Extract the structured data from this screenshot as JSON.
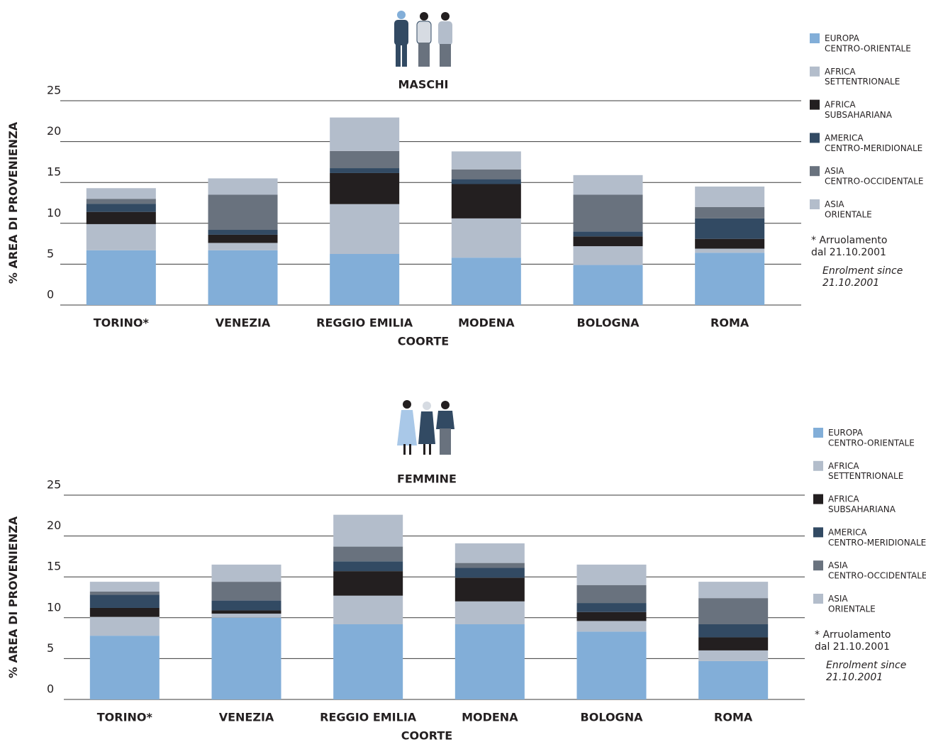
{
  "chart_data": [
    {
      "type": "bar",
      "stacked": true,
      "title": "MASCHI",
      "xlabel": "COORTE",
      "ylabel": "% AREA DI PROVENIENZA",
      "categories": [
        "TORINO*",
        "VENEZIA",
        "REGGIO EMILIA",
        "MODENA",
        "BOLOGNA",
        "ROMA"
      ],
      "series": [
        {
          "name": "EUROPA\nCENTRO-ORIENTALE",
          "color": "#82aed8",
          "values": [
            6.7,
            6.7,
            6.25,
            5.8,
            4.9,
            6.4
          ]
        },
        {
          "name": "AFRICA\nSETTENTRIONALE",
          "color": "#b3bdcb",
          "values": [
            3.2,
            0.9,
            6.1,
            4.8,
            2.3,
            0.5
          ]
        },
        {
          "name": "AFRICA\nSUBSAHARIANA",
          "color": "#231f20",
          "values": [
            1.5,
            1.0,
            3.8,
            4.2,
            1.2,
            1.2
          ]
        },
        {
          "name": "AMERICA\nCENTRO-MERIDIONALE",
          "color": "#324a63",
          "values": [
            1.0,
            0.6,
            0.6,
            0.6,
            0.6,
            2.5
          ]
        },
        {
          "name": "ASIA\nCENTRO-OCCIDENTALE",
          "color": "#69727e",
          "values": [
            0.6,
            4.3,
            2.1,
            1.2,
            4.5,
            1.4
          ]
        },
        {
          "name": "ASIA\nORIENTALE",
          "color": "#b3bdcb",
          "values": [
            1.3,
            2.0,
            4.1,
            2.2,
            2.4,
            2.5
          ]
        }
      ],
      "ylim": [
        0,
        25
      ],
      "yticks": [
        0,
        5,
        10,
        15,
        20,
        25
      ],
      "grid": true,
      "note": "* Arruolamento\ndal 21.10.2001",
      "note_en": "Enrolment since\n21.10.2001"
    },
    {
      "type": "bar",
      "stacked": true,
      "title": "FEMMINE",
      "xlabel": "COORTE",
      "ylabel": "% AREA DI PROVENIENZA",
      "categories": [
        "TORINO*",
        "VENEZIA",
        "REGGIO EMILIA",
        "MODENA",
        "BOLOGNA",
        "ROMA"
      ],
      "series": [
        {
          "name": "EUROPA\nCENTRO-ORIENTALE",
          "color": "#82aed8",
          "values": [
            7.8,
            10.0,
            9.2,
            9.2,
            8.3,
            4.7
          ]
        },
        {
          "name": "AFRICA\nSETTENTRIONALE",
          "color": "#b3bdcb",
          "values": [
            2.3,
            0.5,
            3.5,
            2.8,
            1.3,
            1.3
          ]
        },
        {
          "name": "AFRICA\nSUBSAHARIANA",
          "color": "#231f20",
          "values": [
            1.1,
            0.4,
            3.0,
            2.9,
            1.1,
            1.6
          ]
        },
        {
          "name": "AMERICA\nCENTRO-MERIDIONALE",
          "color": "#324a63",
          "values": [
            1.6,
            1.2,
            1.2,
            1.2,
            1.1,
            1.6
          ]
        },
        {
          "name": "ASIA\nCENTRO-OCCIDENTALE",
          "color": "#69727e",
          "values": [
            0.4,
            2.3,
            1.8,
            0.6,
            2.2,
            3.2
          ]
        },
        {
          "name": "ASIA\nORIENTALE",
          "color": "#b3bdcb",
          "values": [
            1.2,
            2.1,
            3.9,
            2.4,
            2.5,
            2.0
          ]
        }
      ],
      "ylim": [
        0,
        25
      ],
      "yticks": [
        0,
        5,
        10,
        15,
        20,
        25
      ],
      "grid": true,
      "note": "* Arruolamento\ndal 21.10.2001",
      "note_en": "Enrolment since\n21.10.2001"
    }
  ]
}
